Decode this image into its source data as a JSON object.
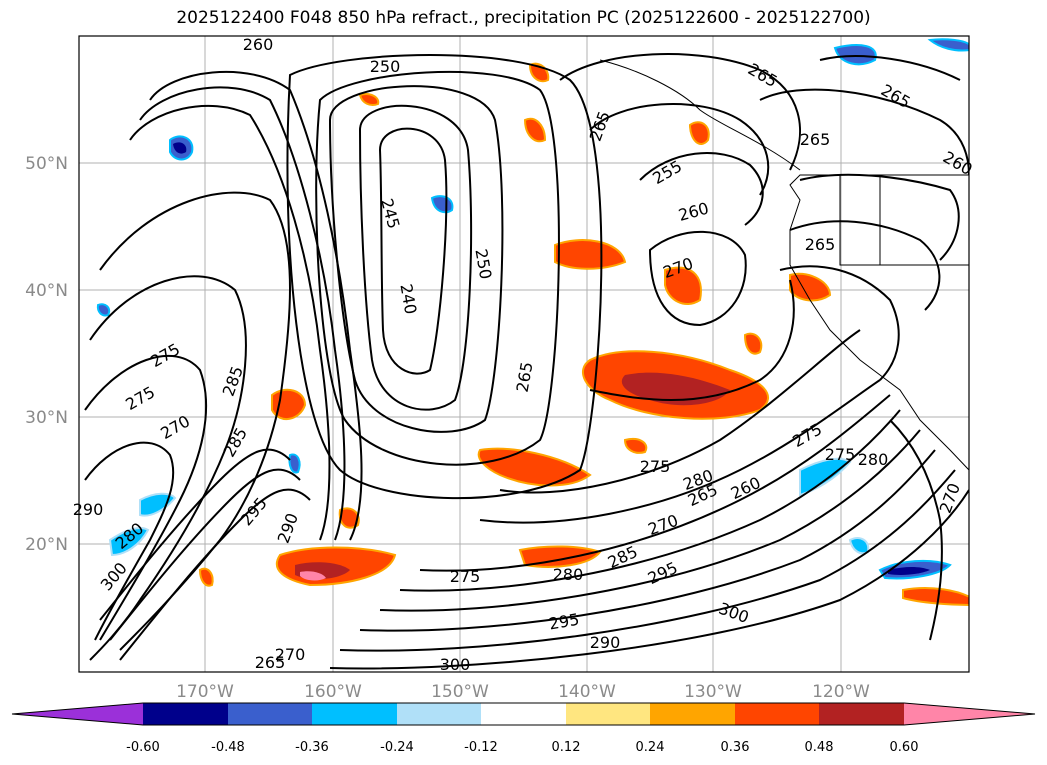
{
  "title": "2025122400 F048 850 hPa refract., precipitation PC (2025122600 - 2025122700)",
  "lat_labels": [
    "50°N",
    "40°N",
    "30°N",
    "20°N"
  ],
  "lon_labels": [
    "170°W",
    "160°W",
    "150°W",
    "140°W",
    "130°W",
    "120°W"
  ],
  "colorbar": {
    "ticks": [
      "-0.60",
      "-0.48",
      "-0.36",
      "-0.24",
      "-0.12",
      "0.12",
      "0.24",
      "0.36",
      "0.48",
      "0.60"
    ],
    "colors": [
      "#9b30d9",
      "#00008b",
      "#3a5fcd",
      "#00bfff",
      "#b0e0f8",
      "#ffffff",
      "#ffe680",
      "#ffa500",
      "#ff4500",
      "#b22222",
      "#ff85a8"
    ]
  },
  "contour_labels": [
    "260",
    "250",
    "265",
    "265",
    "265",
    "255",
    "265",
    "260",
    "245",
    "240",
    "250",
    "260",
    "265",
    "270",
    "275",
    "275",
    "285",
    "270",
    "285",
    "265",
    "275",
    "280",
    "295",
    "290",
    "290",
    "300",
    "280",
    "280",
    "275",
    "270",
    "265",
    "260",
    "275",
    "285",
    "295",
    "300",
    "295",
    "265",
    "270",
    "300",
    "290",
    "275",
    "280",
    "270"
  ]
}
